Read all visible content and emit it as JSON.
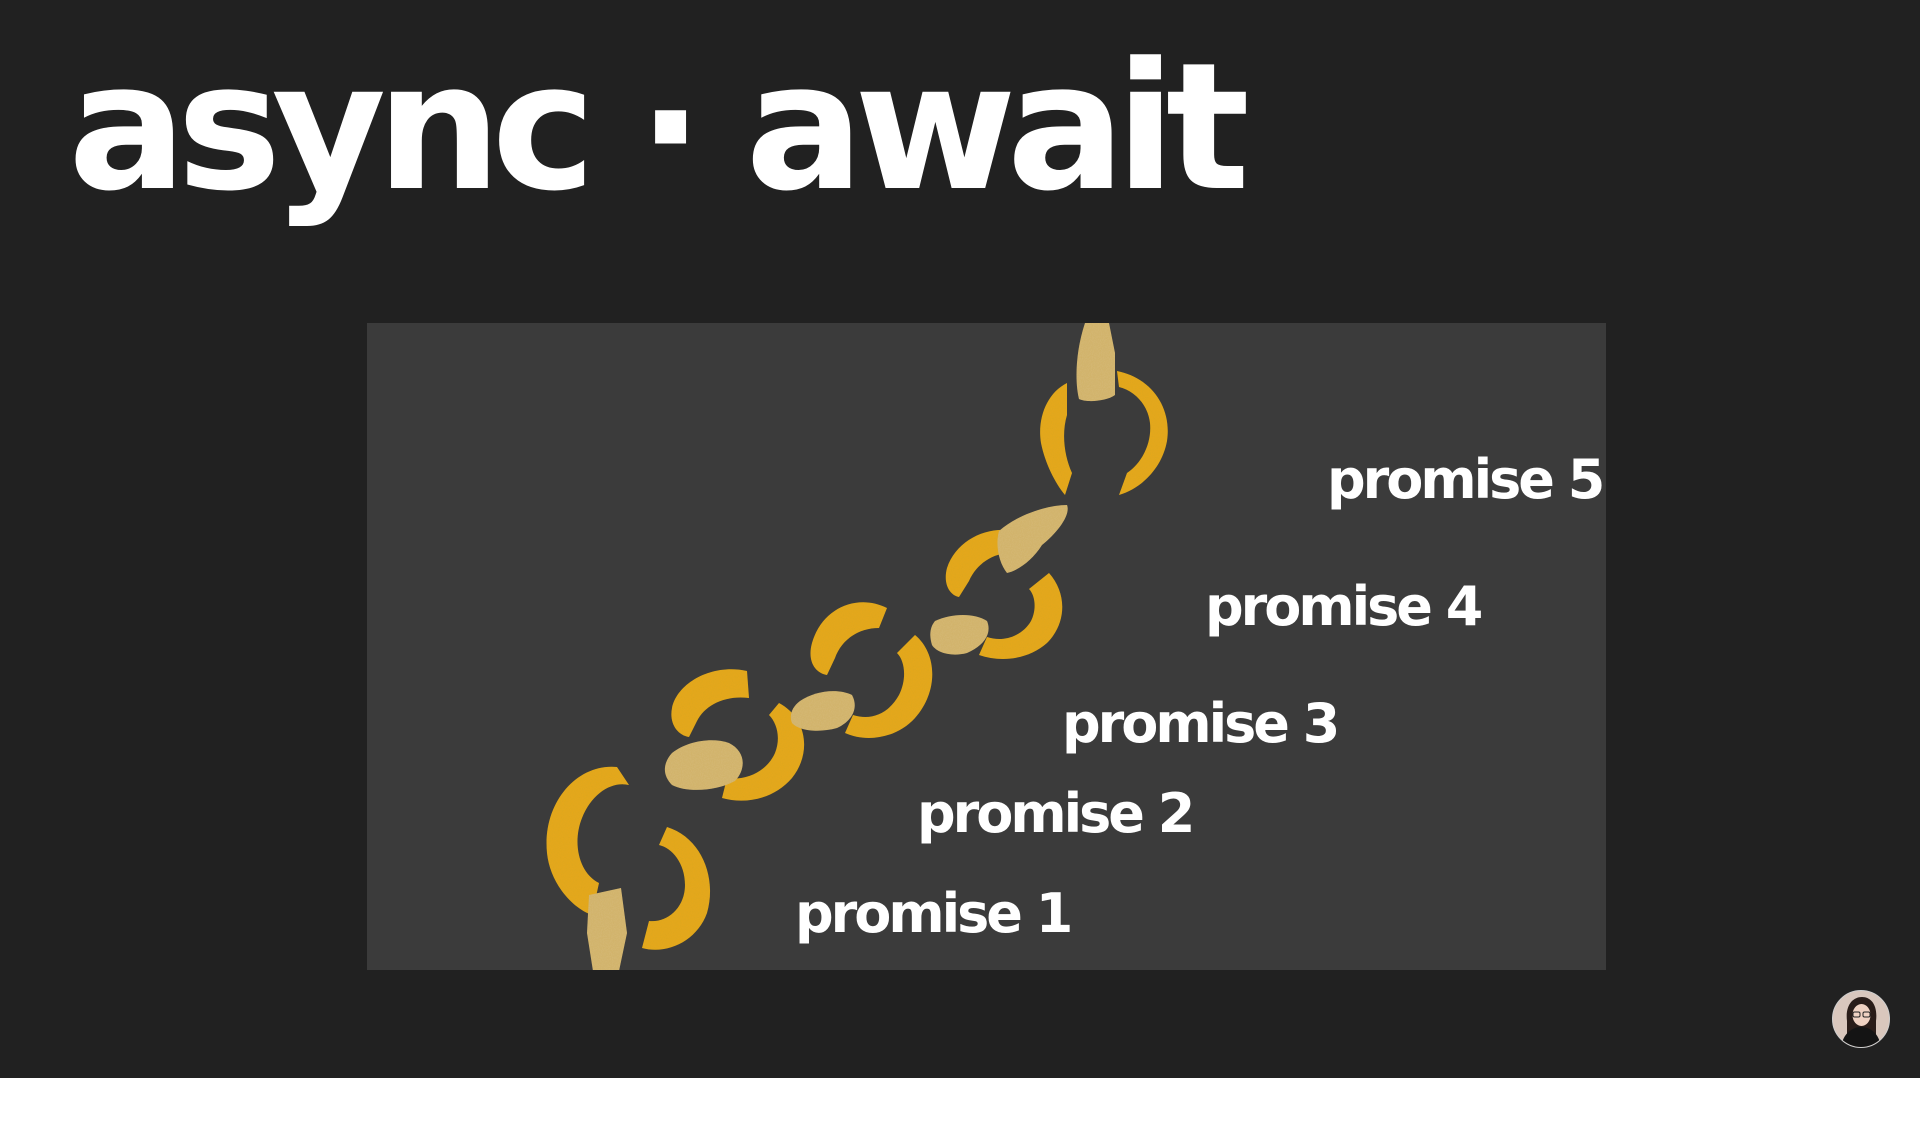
{
  "slide": {
    "title": "async · await",
    "chain_labels": [
      "promise 1",
      "promise 2",
      "promise 3",
      "promise 4",
      "promise 5"
    ]
  },
  "presenter": {
    "avatar_icon": "presenter-avatar"
  },
  "colors": {
    "slide_background": "#212121",
    "panel_background": "#3b3b3b",
    "link_gold": "#e8a91a",
    "link_broken": "#d6b978",
    "text": "#ffffff"
  }
}
